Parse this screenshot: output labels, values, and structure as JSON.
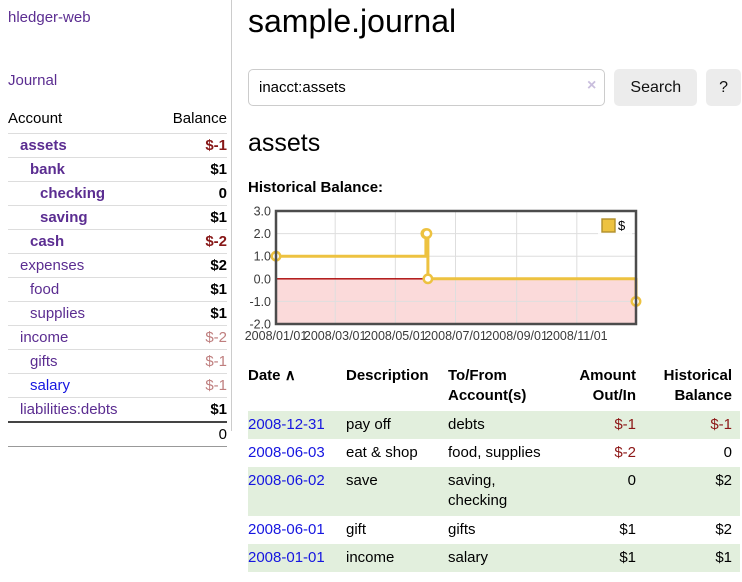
{
  "app": {
    "title": "hledger-web"
  },
  "sidebar": {
    "nav": {
      "journal": "Journal"
    },
    "accounts_table": {
      "headers": {
        "account": "Account",
        "balance": "Balance"
      },
      "rows": [
        {
          "name": "assets",
          "balance": "$-1",
          "name_cls": "ind1 b",
          "bal_cls": "neg-strong"
        },
        {
          "name": "bank",
          "balance": "$1",
          "name_cls": "ind2 b",
          "bal_cls": "pos"
        },
        {
          "name": "checking",
          "balance": "0",
          "name_cls": "ind3 b",
          "bal_cls": "pos"
        },
        {
          "name": "saving",
          "balance": "$1",
          "name_cls": "ind3 b",
          "bal_cls": "pos"
        },
        {
          "name": "cash",
          "balance": "$-2",
          "name_cls": "ind2 b",
          "bal_cls": "neg-strong"
        },
        {
          "name": "expenses",
          "balance": "$2",
          "name_cls": "ind1",
          "bal_cls": "pos"
        },
        {
          "name": "food",
          "balance": "$1",
          "name_cls": "ind2",
          "bal_cls": "pos"
        },
        {
          "name": "supplies",
          "balance": "$1",
          "name_cls": "ind2",
          "bal_cls": "pos"
        },
        {
          "name": "income",
          "balance": "$-2",
          "name_cls": "ind1",
          "bal_cls": "neg-muted"
        },
        {
          "name": "gifts",
          "balance": "$-1",
          "name_cls": "ind2",
          "bal_cls": "neg-muted"
        },
        {
          "name": "salary",
          "balance": "$-1",
          "name_cls": "ind2 blue",
          "bal_cls": "neg-muted"
        },
        {
          "name": "liabilities:debts",
          "balance": "$1",
          "name_cls": "ind1",
          "bal_cls": "pos"
        }
      ],
      "total": "0"
    }
  },
  "main": {
    "title": "sample.journal",
    "search": {
      "value": "inacct:assets",
      "clear_icon": "×",
      "button_label": "Search",
      "help_label": "?"
    },
    "account_heading": "assets",
    "chart_label": "Historical Balance:"
  },
  "chart_data": {
    "type": "line",
    "step": true,
    "title": "Historical Balance",
    "series": [
      {
        "name": "$",
        "color": "#edc240",
        "x": [
          "2008-01-01",
          "2008-06-01",
          "2008-06-02",
          "2008-06-03",
          "2008-12-31"
        ],
        "y": [
          1,
          2,
          2,
          0,
          -1
        ]
      }
    ],
    "x_ticks": [
      "2008/01/01",
      "2008/03/01",
      "2008/05/01",
      "2008/07/01",
      "2008/09/01",
      "2008/11/01"
    ],
    "y_ticks": [
      3.0,
      2.0,
      1.0,
      0.0,
      -1.0,
      -2.0
    ],
    "xlim": [
      "2008-01-01",
      "2008-12-31"
    ],
    "ylim": [
      -2,
      3
    ],
    "grid": true,
    "legend_position": "top-right",
    "colors": {
      "negative_region_fill": "#fbdada",
      "zero_line": "#aa0000",
      "grid": "#dedede",
      "border": "#4c4c4c"
    }
  },
  "register_table": {
    "headers": {
      "date": "Date",
      "description": "Description",
      "accounts": "To/From Account(s)",
      "amount": "Amount Out/In",
      "balance": "Historical Balance"
    },
    "sort_icon": "∧",
    "rows": [
      {
        "date": "2008-12-31",
        "description": "pay off",
        "accounts": "debts",
        "amount": "$-1",
        "amount_cls": "neg",
        "balance": "$-1",
        "balance_cls": "neg"
      },
      {
        "date": "2008-06-03",
        "description": "eat & shop",
        "accounts": "food, supplies",
        "amount": "$-2",
        "amount_cls": "neg",
        "balance": "0",
        "balance_cls": ""
      },
      {
        "date": "2008-06-02",
        "description": "save",
        "accounts": "saving, checking",
        "amount": "0",
        "amount_cls": "",
        "balance": "$2",
        "balance_cls": ""
      },
      {
        "date": "2008-06-01",
        "description": "gift",
        "accounts": "gifts",
        "amount": "$1",
        "amount_cls": "",
        "balance": "$2",
        "balance_cls": ""
      },
      {
        "date": "2008-01-01",
        "description": "income",
        "accounts": "salary",
        "amount": "$1",
        "amount_cls": "",
        "balance": "$1",
        "balance_cls": ""
      }
    ]
  },
  "colors": {
    "link_purple": "#5b2d91",
    "link_blue": "#1616e0",
    "negative_strong": "#871717",
    "negative_muted": "#bf7e7e",
    "stripe_green": "#e2efdd",
    "series_gold": "#edc240"
  }
}
